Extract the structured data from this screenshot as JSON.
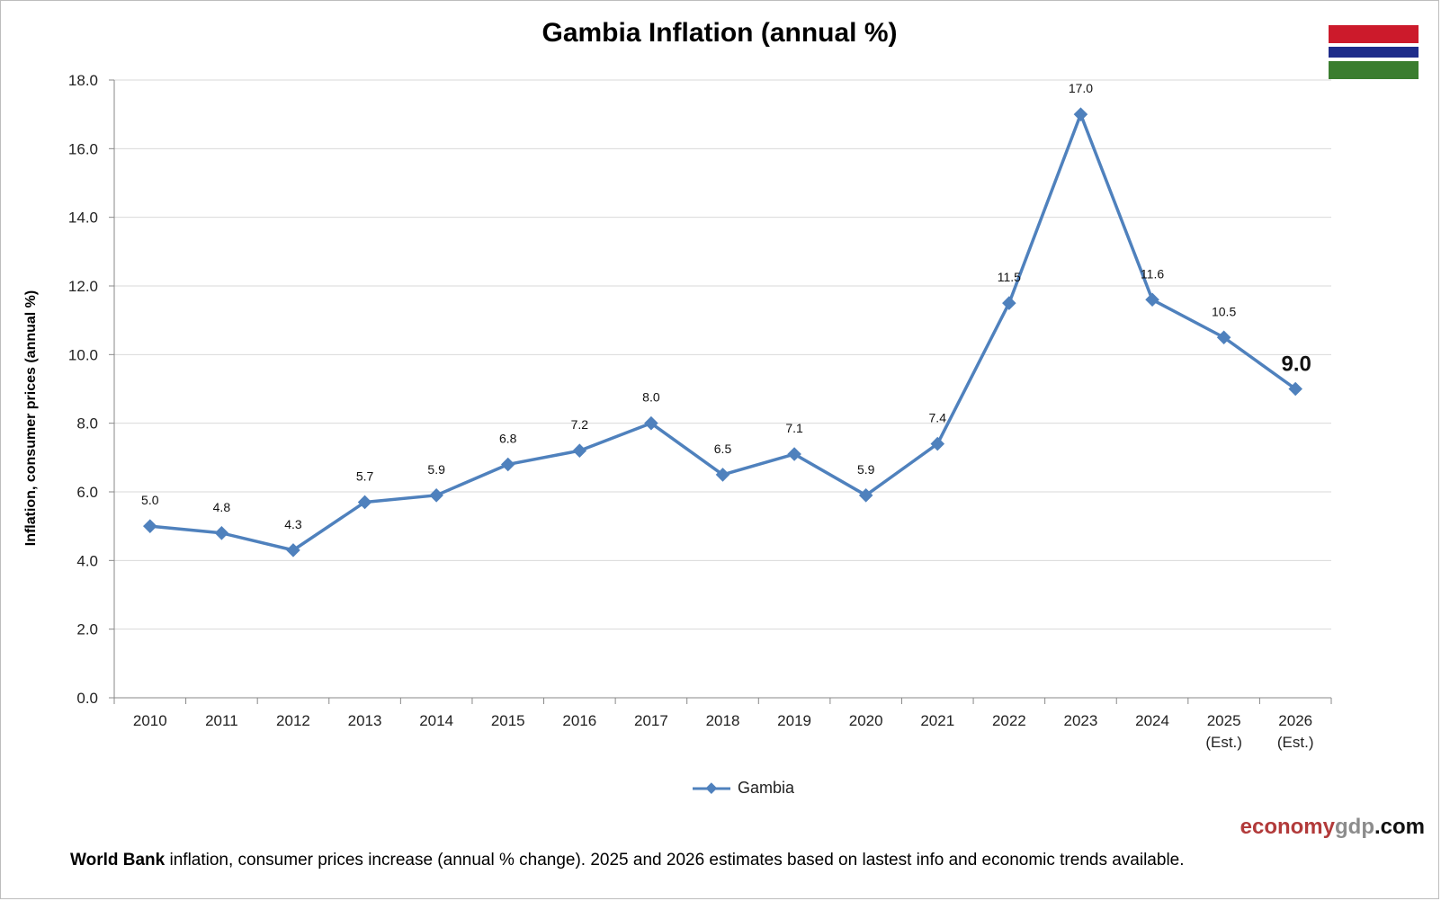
{
  "page": {
    "title": "Gambia Inflation (annual %)"
  },
  "flag": {
    "top": "#cc1a2b",
    "middle": "#1e2c8a",
    "bottom": "#3a7d2f"
  },
  "chart_data": {
    "type": "line",
    "categories": [
      "2010",
      "2011",
      "2012",
      "2013",
      "2014",
      "2015",
      "2016",
      "2017",
      "2018",
      "2019",
      "2020",
      "2021",
      "2022",
      "2023",
      "2024",
      "2025 (Est.)",
      "2026 (Est.)"
    ],
    "series": [
      {
        "name": "Gambia",
        "values": [
          5.0,
          4.8,
          4.3,
          5.7,
          5.9,
          6.8,
          7.2,
          8.0,
          6.5,
          7.1,
          5.9,
          7.4,
          11.5,
          17.0,
          11.6,
          10.5,
          9.0
        ],
        "color": "#4f81bd"
      }
    ],
    "ylabel": "Inflation, consumer prices (annual %)",
    "ylim": [
      0,
      18
    ],
    "yticks": [
      "0.0",
      "2.0",
      "4.0",
      "6.0",
      "8.0",
      "10.0",
      "12.0",
      "14.0",
      "16.0",
      "18.0"
    ],
    "grid": true,
    "legend_position": "bottom"
  },
  "brand": {
    "a": "economy",
    "b": "gdp",
    "c": ".com"
  },
  "footnote": {
    "bold": "World Bank",
    "text": " inflation, consumer prices increase (annual % change).  2025 and 2026 estimates based on lastest info and economic trends available."
  }
}
